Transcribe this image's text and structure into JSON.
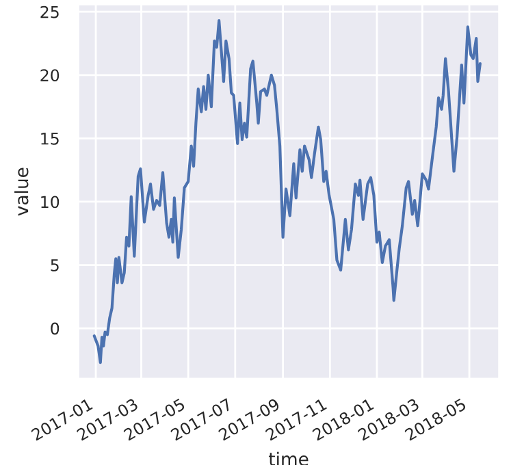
{
  "chart_data": {
    "type": "line",
    "xlabel": "time",
    "ylabel": "value",
    "x": [
      "2016-12-30",
      "2017-01-04",
      "2017-01-07",
      "2017-01-09",
      "2017-01-11",
      "2017-01-13",
      "2017-01-16",
      "2017-01-19",
      "2017-01-22",
      "2017-01-25",
      "2017-01-27",
      "2017-01-29",
      "2017-01-31",
      "2017-02-04",
      "2017-02-07",
      "2017-02-10",
      "2017-02-13",
      "2017-02-16",
      "2017-02-20",
      "2017-02-25",
      "2017-02-28",
      "2017-03-05",
      "2017-03-10",
      "2017-03-13",
      "2017-03-17",
      "2017-03-21",
      "2017-03-25",
      "2017-03-29",
      "2017-04-03",
      "2017-04-06",
      "2017-04-09",
      "2017-04-11",
      "2017-04-13",
      "2017-04-18",
      "2017-04-22",
      "2017-04-26",
      "2017-05-01",
      "2017-05-05",
      "2017-05-08",
      "2017-05-11",
      "2017-05-14",
      "2017-05-18",
      "2017-05-21",
      "2017-05-24",
      "2017-05-27",
      "2017-05-31",
      "2017-06-04",
      "2017-06-07",
      "2017-06-10",
      "2017-06-13",
      "2017-06-16",
      "2017-06-19",
      "2017-06-23",
      "2017-06-26",
      "2017-06-29",
      "2017-07-04",
      "2017-07-07",
      "2017-07-10",
      "2017-07-13",
      "2017-07-16",
      "2017-07-21",
      "2017-07-24",
      "2017-07-29",
      "2017-07-31",
      "2017-08-03",
      "2017-08-08",
      "2017-08-11",
      "2017-08-17",
      "2017-08-21",
      "2017-08-24",
      "2017-08-28",
      "2017-09-01",
      "2017-09-05",
      "2017-09-10",
      "2017-09-15",
      "2017-09-18",
      "2017-09-23",
      "2017-09-26",
      "2017-09-29",
      "2017-10-05",
      "2017-10-08",
      "2017-10-12",
      "2017-10-17",
      "2017-10-20",
      "2017-10-24",
      "2017-10-27",
      "2017-10-31",
      "2017-11-06",
      "2017-11-10",
      "2017-11-15",
      "2017-11-21",
      "2017-11-25",
      "2017-11-29",
      "2017-12-04",
      "2017-12-08",
      "2017-12-10",
      "2017-12-14",
      "2017-12-20",
      "2017-12-24",
      "2017-12-28",
      "2018-01-01",
      "2018-01-04",
      "2018-01-08",
      "2018-01-12",
      "2018-01-17",
      "2018-01-22",
      "2018-01-23",
      "2018-01-27",
      "2018-01-30",
      "2018-02-03",
      "2018-02-08",
      "2018-02-11",
      "2018-02-16",
      "2018-02-19",
      "2018-02-23",
      "2018-03-01",
      "2018-03-06",
      "2018-03-09",
      "2018-03-14",
      "2018-03-19",
      "2018-03-22",
      "2018-03-26",
      "2018-03-28",
      "2018-03-31",
      "2018-04-04",
      "2018-04-08",
      "2018-04-11",
      "2018-04-15",
      "2018-04-21",
      "2018-04-24",
      "2018-04-29",
      "2018-05-03",
      "2018-05-06",
      "2018-05-10",
      "2018-05-12",
      "2018-05-15"
    ],
    "series": [
      {
        "color": "#4c72b0",
        "values": [
          -0.6,
          -1.4,
          -2.7,
          -0.7,
          -1.4,
          -0.3,
          -0.5,
          0.8,
          1.6,
          4.3,
          5.5,
          3.6,
          5.6,
          3.6,
          4.4,
          7.2,
          6.5,
          10.4,
          5.7,
          12,
          12.6,
          8.4,
          10.5,
          11.4,
          9.4,
          10.1,
          9.7,
          12.3,
          8.3,
          7.2,
          8.6,
          6.8,
          10.3,
          5.6,
          7.8,
          11.1,
          11.6,
          14.4,
          12.8,
          16.2,
          18.9,
          17.1,
          19.1,
          17.3,
          20,
          17.5,
          22.7,
          22.2,
          24.3,
          21.9,
          19.5,
          22.7,
          21.3,
          18.6,
          18.4,
          14.6,
          17.8,
          14.9,
          16.2,
          15.1,
          20.5,
          21.1,
          17.8,
          16.2,
          18.7,
          18.9,
          18.4,
          20,
          19.2,
          17.3,
          14.4,
          7.2,
          11,
          8.9,
          13,
          10.3,
          14.1,
          12.4,
          14.4,
          13.3,
          11.9,
          13.8,
          15.9,
          14.9,
          11.6,
          12.4,
          10.5,
          8.6,
          5.4,
          4.6,
          8.6,
          6.2,
          7.8,
          11.4,
          10.5,
          11.7,
          8.6,
          11.4,
          11.9,
          10.5,
          6.8,
          7.6,
          5.2,
          6.5,
          7,
          3.2,
          2.2,
          4.6,
          6.3,
          8.1,
          11.1,
          11.6,
          9,
          10.1,
          8.1,
          12.2,
          11.7,
          11,
          13.5,
          15.9,
          18.2,
          17.3,
          18.4,
          21.3,
          18.7,
          15.1,
          12.4,
          15.1,
          20.8,
          17.8,
          23.8,
          21.6,
          21.3,
          22.9,
          19.5,
          20.9
        ]
      }
    ],
    "xlim": [
      "2016-12-09",
      "2018-06-09"
    ],
    "xticks": [
      {
        "value": "2017-01-01",
        "label": "2017-01"
      },
      {
        "value": "2017-03-01",
        "label": "2017-03"
      },
      {
        "value": "2017-05-01",
        "label": "2017-05"
      },
      {
        "value": "2017-07-01",
        "label": "2017-07"
      },
      {
        "value": "2017-09-01",
        "label": "2017-09"
      },
      {
        "value": "2017-11-01",
        "label": "2017-11"
      },
      {
        "value": "2018-01-01",
        "label": "2018-01"
      },
      {
        "value": "2018-03-01",
        "label": "2018-03"
      },
      {
        "value": "2018-05-01",
        "label": "2018-05"
      }
    ],
    "ylim": [
      -4,
      25.6
    ],
    "yticks": [
      0,
      5,
      10,
      15,
      20,
      25
    ],
    "grid": true,
    "marker": "none",
    "line_style": "solid"
  }
}
